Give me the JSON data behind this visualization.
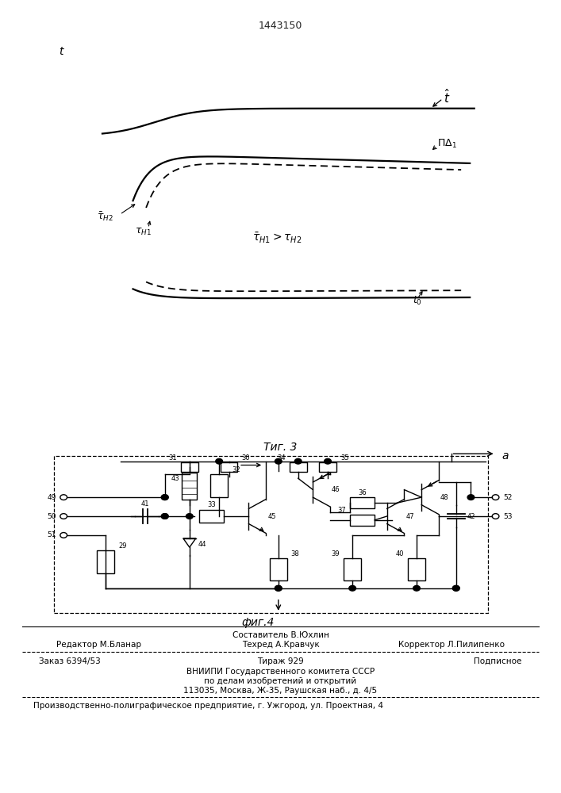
{
  "title": "1443150",
  "fig3_label": "Τиг. 3",
  "fig4_label": "фиг.4"
}
